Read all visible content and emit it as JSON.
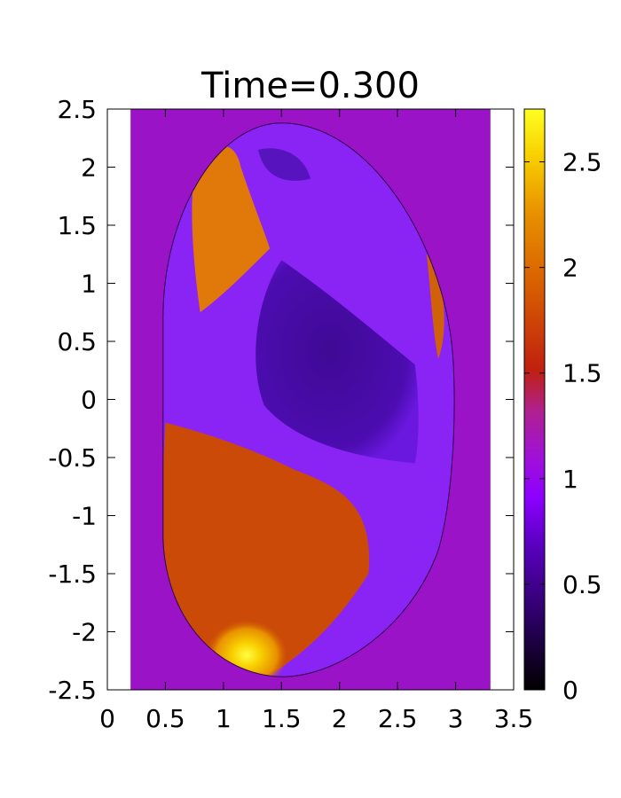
{
  "chart_data": {
    "type": "heatmap",
    "title": "Time=0.300",
    "xlabel": "",
    "ylabel": "",
    "xlim": [
      0,
      3.5
    ],
    "ylim": [
      -2.5,
      2.5
    ],
    "xticks": [
      "0",
      "0.5",
      "1",
      "1.5",
      "2",
      "2.5",
      "3",
      "3.5"
    ],
    "yticks": [
      "2.5",
      "2",
      "1.5",
      "1",
      "0.5",
      "0",
      "-0.5",
      "-1",
      "-1.5",
      "-2",
      "-2.5"
    ],
    "colorbar": {
      "range": [
        0,
        2.75
      ],
      "ticks": [
        "2.5",
        "2",
        "1.5",
        "1",
        "0.5",
        "0"
      ],
      "colormap": [
        "#000000",
        "#3a0080",
        "#8c00ff",
        "#b020a0",
        "#c03000",
        "#e07000",
        "#f0b000",
        "#ffff00"
      ]
    },
    "background_region": {
      "x": [
        0.2,
        3.3
      ],
      "y": [
        -2.5,
        2.5
      ],
      "value": 1.0,
      "color": "#9a13c7"
    },
    "regions": [
      {
        "name": "vessel-interior",
        "value": 0.75,
        "color": "#8a24f5"
      },
      {
        "name": "core-low",
        "value": 0.3,
        "color": "#4a0aa5"
      },
      {
        "name": "lower-hot",
        "value": 1.9,
        "color": "#cc4a08"
      },
      {
        "name": "upper-left-filament",
        "value": 2.1,
        "color": "#e0780a"
      },
      {
        "name": "divertor-spot",
        "value": 2.7,
        "color": "#ffff20"
      }
    ],
    "grid": false,
    "legend": "none"
  }
}
